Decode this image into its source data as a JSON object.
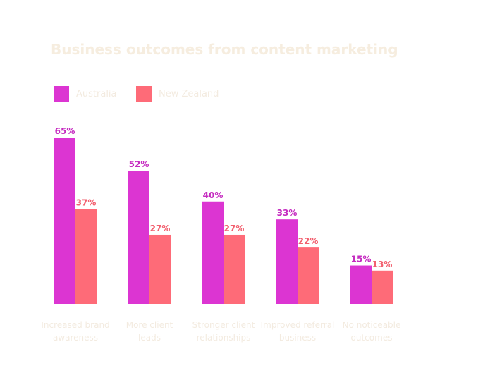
{
  "chart_data": {
    "type": "bar",
    "title": "Business outcomes from content marketing",
    "categories": [
      [
        "Increased brand",
        "awareness"
      ],
      [
        "More client",
        "leads"
      ],
      [
        "Stronger client",
        "relationships"
      ],
      [
        "Improved referral",
        "business"
      ],
      [
        "No noticeable",
        "outcomes"
      ]
    ],
    "series": [
      {
        "name": "Australia",
        "values": [
          65,
          52,
          40,
          33,
          15
        ],
        "color": "#dc35d2",
        "label_color": "#c52cc0"
      },
      {
        "name": "New Zealand",
        "values": [
          37,
          27,
          27,
          22,
          13
        ],
        "color": "#fe6b78",
        "label_color": "#f2606f"
      }
    ],
    "value_suffix": "%",
    "ylim": [
      0,
      65
    ],
    "legend_position": "top-left",
    "grid": false
  }
}
